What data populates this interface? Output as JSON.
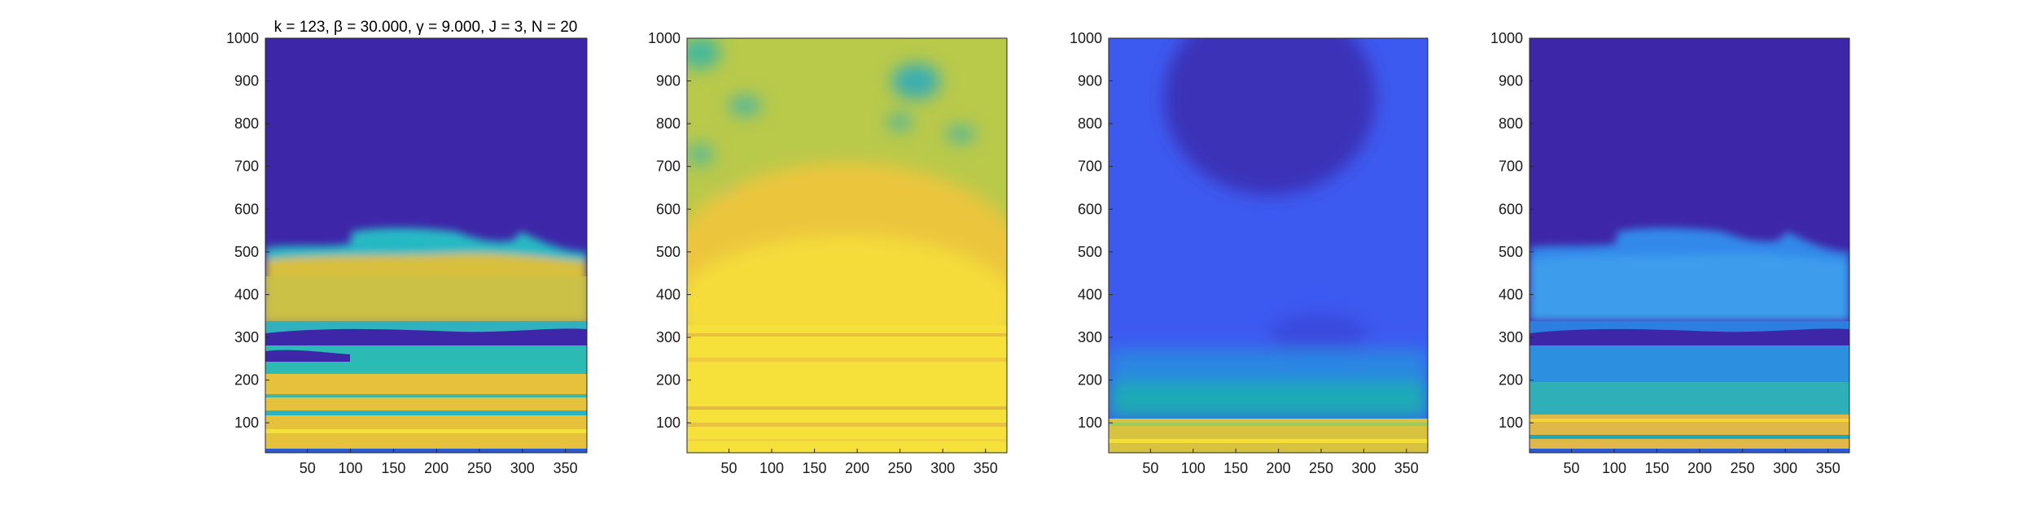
{
  "chart_data": [
    {
      "type": "heatmap",
      "title": "k = 123, β = 30.000, γ = 9.000, J = 3, N = 20",
      "xlim": [
        1,
        375
      ],
      "ylim": [
        30,
        1000
      ],
      "xticks": [
        50,
        100,
        150,
        200,
        250,
        300,
        350
      ],
      "yticks": [
        100,
        200,
        300,
        400,
        500,
        600,
        700,
        800,
        900,
        1000
      ],
      "colormap": "parula",
      "background_color": "#3E26A8",
      "bands": [
        {
          "y_from": 30,
          "y_to": 40,
          "color": "#2A5BD6"
        },
        {
          "y_from": 40,
          "y_to": 200,
          "color": "#E8C240"
        },
        {
          "y_from": 200,
          "y_to": 230,
          "color": "#4FB3A0"
        },
        {
          "y_from": 230,
          "y_to": 280,
          "color": "#32B8C8"
        },
        {
          "y_from": 280,
          "y_to": 330,
          "color": "#3E26A8"
        },
        {
          "y_from": 330,
          "y_to": 480,
          "color": "#C9C24A"
        },
        {
          "y_from": 480,
          "y_to": 560,
          "color": "#2FC0C0"
        }
      ]
    },
    {
      "type": "heatmap",
      "title": "",
      "xlim": [
        1,
        375
      ],
      "ylim": [
        30,
        1000
      ],
      "xticks": [
        50,
        100,
        150,
        200,
        250,
        300,
        350
      ],
      "yticks": [
        100,
        200,
        300,
        400,
        500,
        600,
        700,
        800,
        900,
        1000
      ],
      "colormap": "parula",
      "background_color": "#9CCB56",
      "bands": [
        {
          "y_from": 30,
          "y_to": 250,
          "color": "#F6E23A"
        },
        {
          "y_from": 250,
          "y_to": 600,
          "color": "#F2D23C"
        },
        {
          "y_from": 600,
          "y_to": 1000,
          "color": "#B9C94A"
        }
      ]
    },
    {
      "type": "heatmap",
      "title": "",
      "xlim": [
        1,
        375
      ],
      "ylim": [
        30,
        1000
      ],
      "xticks": [
        50,
        100,
        150,
        200,
        250,
        300,
        350
      ],
      "yticks": [
        100,
        200,
        300,
        400,
        500,
        600,
        700,
        800,
        900,
        1000
      ],
      "colormap": "parula",
      "background_color": "#3D5AF0",
      "bands": [
        {
          "y_from": 30,
          "y_to": 120,
          "color": "#D6C43E"
        },
        {
          "y_from": 120,
          "y_to": 200,
          "color": "#1FAAB8"
        },
        {
          "y_from": 200,
          "y_to": 350,
          "color": "#2D7FE6"
        },
        {
          "y_from": 350,
          "y_to": 700,
          "color": "#3D5AF0"
        },
        {
          "y_from": 700,
          "y_to": 1000,
          "color": "#3A3FC8"
        }
      ]
    },
    {
      "type": "heatmap",
      "title": "",
      "xlim": [
        1,
        375
      ],
      "ylim": [
        30,
        1000
      ],
      "xticks": [
        50,
        100,
        150,
        200,
        250,
        300,
        350
      ],
      "yticks": [
        100,
        200,
        300,
        400,
        500,
        600,
        700,
        800,
        900,
        1000
      ],
      "colormap": "parula",
      "background_color": "#3E26A8",
      "bands": [
        {
          "y_from": 30,
          "y_to": 40,
          "color": "#2A5BD6"
        },
        {
          "y_from": 40,
          "y_to": 130,
          "color": "#E0B84A"
        },
        {
          "y_from": 130,
          "y_to": 200,
          "color": "#2FB0B8"
        },
        {
          "y_from": 200,
          "y_to": 330,
          "color": "#2C7FE0"
        },
        {
          "y_from": 330,
          "y_to": 480,
          "color": "#3C9CEB"
        },
        {
          "y_from": 480,
          "y_to": 560,
          "color": "#3389EA"
        }
      ]
    }
  ]
}
